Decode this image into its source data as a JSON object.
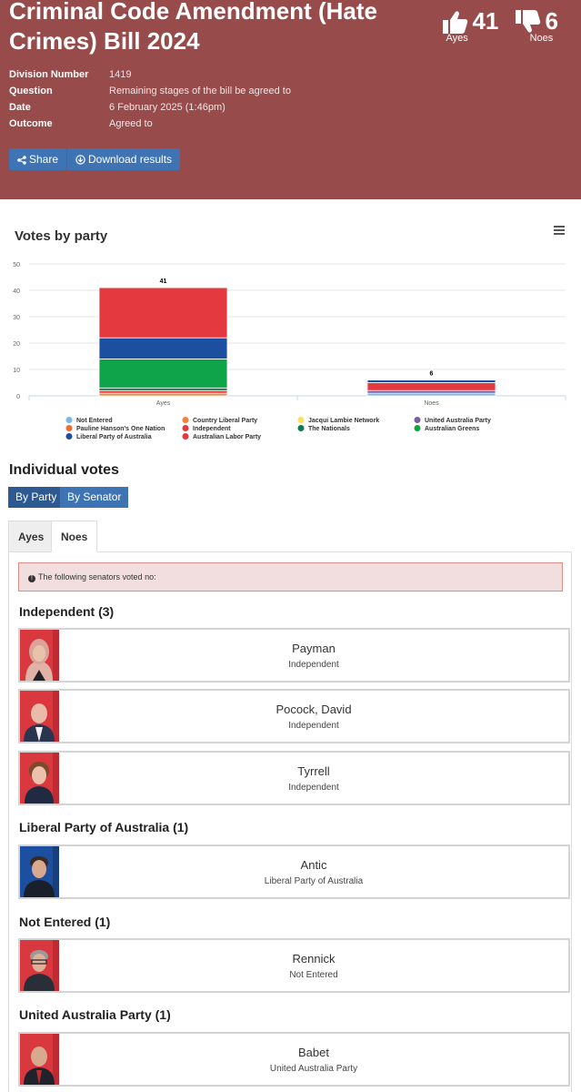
{
  "bill": {
    "title": "Criminal Code Amendment (Hate Crimes) Bill 2024",
    "ayes_count": "41",
    "ayes_label": "Ayes",
    "noes_count": "6",
    "noes_label": "Noes"
  },
  "details": [
    {
      "key": "Division Number",
      "value": "1419"
    },
    {
      "key": "Question",
      "value": "Remaining stages of the bill be agreed to"
    },
    {
      "key": "Date",
      "value": "6 February 2025 (1:46pm)"
    },
    {
      "key": "Outcome",
      "value": "Agreed to"
    }
  ],
  "actions": {
    "share_label": "Share",
    "download_label": "Download results"
  },
  "chart_section": {
    "title": "Votes by party",
    "menu_icon": "hamburger-menu-icon"
  },
  "chart_data": {
    "type": "bar",
    "stacked": true,
    "categories": [
      "Ayes",
      "Noes"
    ],
    "ylim": [
      0,
      50
    ],
    "yticks": [
      0,
      10,
      20,
      30,
      40,
      50
    ],
    "totals": [
      41,
      6
    ],
    "grid": true,
    "legend_position": "bottom",
    "series": [
      {
        "name": "Not Entered",
        "color": "#7cb5ec",
        "values": [
          0,
          1
        ]
      },
      {
        "name": "Country Liberal Party",
        "color": "#f7803b",
        "values": [
          1,
          0
        ]
      },
      {
        "name": "Jacqui Lambie Network",
        "color": "#f6e35a",
        "values": [
          0,
          0
        ]
      },
      {
        "name": "United Australia Party",
        "color": "#7a5f98",
        "values": [
          0,
          1
        ]
      },
      {
        "name": "Pauline Hanson's One Nation",
        "color": "#f06a2c",
        "values": [
          0,
          0
        ]
      },
      {
        "name": "Independent",
        "color": "#e3393f",
        "values": [
          1,
          3
        ]
      },
      {
        "name": "The Nationals",
        "color": "#0d7a55",
        "values": [
          1,
          0
        ]
      },
      {
        "name": "Australian Greens",
        "color": "#10a44a",
        "values": [
          11,
          0
        ]
      },
      {
        "name": "Liberal Party of Australia",
        "color": "#1c4fa0",
        "values": [
          8,
          1
        ]
      },
      {
        "name": "Australian Labor Party",
        "color": "#e3393f",
        "values": [
          19,
          0
        ]
      }
    ]
  },
  "individual_votes": {
    "title": "Individual votes",
    "by_party_label": "By Party",
    "by_senator_label": "By Senator",
    "tab_ayes": "Ayes",
    "tab_noes": "Noes",
    "alert_text": "The following senators voted no:",
    "groups": [
      {
        "heading": "Independent (3)",
        "members": [
          {
            "name": "Payman",
            "party": "Independent"
          },
          {
            "name": "Pocock, David",
            "party": "Independent"
          },
          {
            "name": "Tyrrell",
            "party": "Independent"
          }
        ]
      },
      {
        "heading": "Liberal Party of Australia (1)",
        "members": [
          {
            "name": "Antic",
            "party": "Liberal Party of Australia"
          }
        ]
      },
      {
        "heading": "Not Entered (1)",
        "members": [
          {
            "name": "Rennick",
            "party": "Not Entered"
          }
        ]
      },
      {
        "heading": "United Australia Party (1)",
        "members": [
          {
            "name": "Babet",
            "party": "United Australia Party"
          }
        ]
      }
    ]
  }
}
